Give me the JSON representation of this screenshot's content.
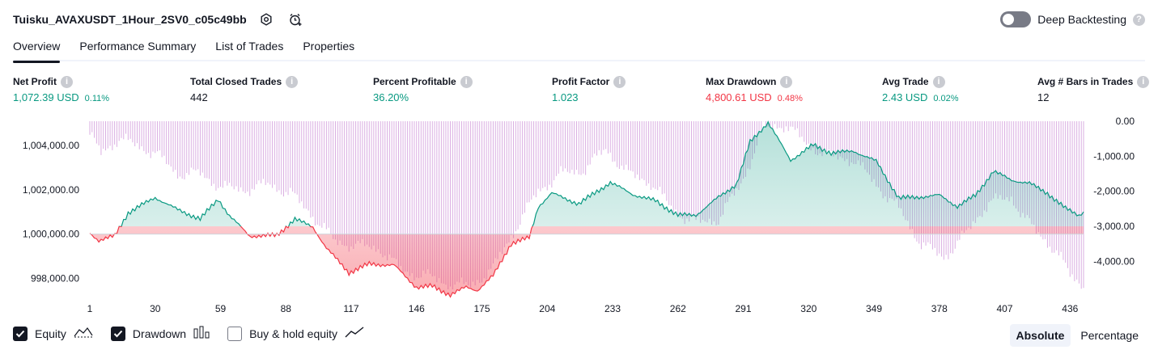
{
  "header": {
    "strategy_name": "Tuisku_AVAXUSDT_1Hour_2SV0_c05c49bb",
    "settings_icon": "settings-icon",
    "add_alert_icon": "add-alert-icon",
    "deep_backtesting_label": "Deep Backtesting",
    "deep_backtesting_enabled": false
  },
  "tabs": [
    {
      "label": "Overview",
      "active": true
    },
    {
      "label": "Performance Summary",
      "active": false
    },
    {
      "label": "List of Trades",
      "active": false
    },
    {
      "label": "Properties",
      "active": false
    }
  ],
  "metrics": [
    {
      "label": "Net Profit",
      "value": "1,072.39 USD",
      "percent": "0.11%",
      "tone": "pos"
    },
    {
      "label": "Total Closed Trades",
      "value": "442",
      "percent": "",
      "tone": "neutral"
    },
    {
      "label": "Percent Profitable",
      "value": "36.20%",
      "percent": "",
      "tone": "pos"
    },
    {
      "label": "Profit Factor",
      "value": "1.023",
      "percent": "",
      "tone": "pos"
    },
    {
      "label": "Max Drawdown",
      "value": "4,800.61 USD",
      "percent": "0.48%",
      "tone": "neg"
    },
    {
      "label": "Avg Trade",
      "value": "2.43 USD",
      "percent": "0.02%",
      "tone": "pos"
    },
    {
      "label": "Avg # Bars in Trades",
      "value": "12",
      "percent": "",
      "tone": "neutral"
    }
  ],
  "colors": {
    "positive": "#089981",
    "negative": "#f23645",
    "drawdown_bars": "#ce93d8",
    "text": "#131722"
  },
  "chart_data": {
    "type": "line",
    "series": [
      {
        "name": "Equity",
        "axis": "left",
        "baseline": 1000000
      },
      {
        "name": "Drawdown",
        "axis": "right",
        "kind": "bar"
      }
    ],
    "x_ticks": [
      "1",
      "30",
      "59",
      "88",
      "117",
      "146",
      "175",
      "204",
      "233",
      "262",
      "291",
      "320",
      "349",
      "378",
      "407",
      "436"
    ],
    "left_axis_ticks": [
      "1,004,000.00",
      "1,002,000.00",
      "1,000,000.00",
      "998,000.00"
    ],
    "right_axis_ticks": [
      "0.00",
      "-1,000.00",
      "-2,000.00",
      "-3,000.00",
      "-4,000.00"
    ],
    "equity_xlim": [
      1,
      442
    ],
    "equity_ylim": [
      997500,
      1005100
    ],
    "drawdown_ylim": [
      -4800,
      0
    ],
    "equity_keypoints": [
      [
        1,
        1000000
      ],
      [
        5,
        999650
      ],
      [
        12,
        999850
      ],
      [
        18,
        1000900
      ],
      [
        30,
        1001600
      ],
      [
        40,
        1001050
      ],
      [
        50,
        1000650
      ],
      [
        58,
        1001550
      ],
      [
        63,
        1000800
      ],
      [
        72,
        999900
      ],
      [
        84,
        999950
      ],
      [
        92,
        1000700
      ],
      [
        100,
        1000350
      ],
      [
        106,
        999400
      ],
      [
        116,
        998300
      ],
      [
        125,
        998700
      ],
      [
        136,
        998650
      ],
      [
        146,
        997650
      ],
      [
        153,
        997700
      ],
      [
        161,
        997300
      ],
      [
        168,
        997650
      ],
      [
        173,
        997500
      ],
      [
        180,
        998150
      ],
      [
        188,
        999600
      ],
      [
        196,
        999850
      ],
      [
        200,
        1001250
      ],
      [
        206,
        1001850
      ],
      [
        218,
        1001350
      ],
      [
        232,
        1002300
      ],
      [
        242,
        1001750
      ],
      [
        252,
        1001450
      ],
      [
        262,
        1000800
      ],
      [
        270,
        1000800
      ],
      [
        280,
        1001600
      ],
      [
        288,
        1002200
      ],
      [
        294,
        1004100
      ],
      [
        302,
        1005000
      ],
      [
        312,
        1003300
      ],
      [
        322,
        1004000
      ],
      [
        330,
        1003650
      ],
      [
        340,
        1003750
      ],
      [
        350,
        1003300
      ],
      [
        360,
        1001650
      ],
      [
        368,
        1001700
      ],
      [
        378,
        1001800
      ],
      [
        386,
        1001300
      ],
      [
        394,
        1001800
      ],
      [
        402,
        1002900
      ],
      [
        410,
        1002500
      ],
      [
        418,
        1002350
      ],
      [
        426,
        1001900
      ],
      [
        434,
        1001200
      ],
      [
        440,
        1000900
      ],
      [
        442,
        1001050
      ]
    ],
    "drawdown_keypoints": [
      [
        1,
        -400
      ],
      [
        6,
        -900
      ],
      [
        14,
        -500
      ],
      [
        22,
        -700
      ],
      [
        30,
        -900
      ],
      [
        40,
        -1500
      ],
      [
        50,
        -1500
      ],
      [
        60,
        -1900
      ],
      [
        70,
        -1950
      ],
      [
        80,
        -1800
      ],
      [
        90,
        -2050
      ],
      [
        100,
        -2700
      ],
      [
        110,
        -3450
      ],
      [
        120,
        -3550
      ],
      [
        130,
        -3650
      ],
      [
        140,
        -4300
      ],
      [
        150,
        -4400
      ],
      [
        160,
        -4650
      ],
      [
        170,
        -4700
      ],
      [
        180,
        -4200
      ],
      [
        190,
        -3050
      ],
      [
        200,
        -2000
      ],
      [
        210,
        -1500
      ],
      [
        220,
        -1400
      ],
      [
        230,
        -800
      ],
      [
        240,
        -1500
      ],
      [
        250,
        -1750
      ],
      [
        260,
        -2550
      ],
      [
        270,
        -2900
      ],
      [
        280,
        -2800
      ],
      [
        290,
        -1800
      ],
      [
        300,
        -200
      ],
      [
        310,
        -100
      ],
      [
        320,
        -700
      ],
      [
        330,
        -1000
      ],
      [
        340,
        -1100
      ],
      [
        350,
        -1800
      ],
      [
        360,
        -2500
      ],
      [
        370,
        -3500
      ],
      [
        380,
        -3900
      ],
      [
        390,
        -3200
      ],
      [
        400,
        -2300
      ],
      [
        410,
        -2200
      ],
      [
        420,
        -3100
      ],
      [
        430,
        -3700
      ],
      [
        436,
        -4400
      ],
      [
        442,
        -4700
      ]
    ]
  },
  "legend": [
    {
      "label": "Equity",
      "checked": true,
      "icon": "equity-line-icon"
    },
    {
      "label": "Drawdown",
      "checked": true,
      "icon": "drawdown-bars-icon"
    },
    {
      "label": "Buy & hold equity",
      "checked": false,
      "icon": "buy-hold-line-icon"
    }
  ],
  "view_modes": [
    {
      "label": "Absolute",
      "active": true
    },
    {
      "label": "Percentage",
      "active": false
    }
  ]
}
